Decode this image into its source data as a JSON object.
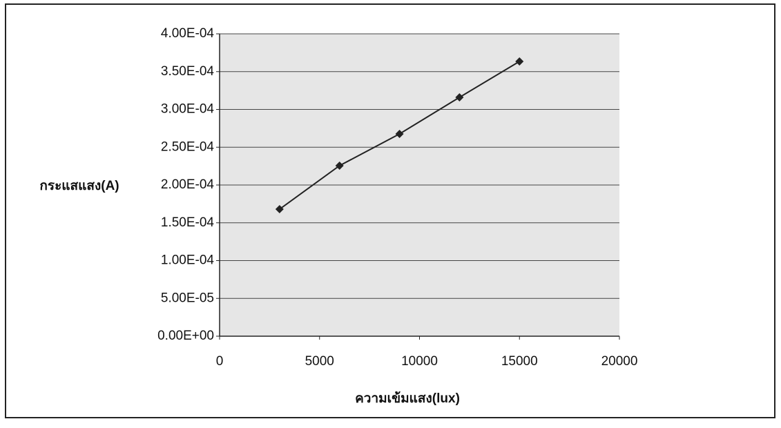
{
  "chart_data": {
    "type": "line",
    "x_label": "ความเข้มแสง(lux)",
    "y_label": "กระแสแสง(A)",
    "x": [
      3000,
      6000,
      9000,
      12000,
      15000
    ],
    "values": [
      0.000168,
      0.0002256,
      0.0002676,
      0.000316,
      0.0003635
    ],
    "color": "#222222",
    "xlim": [
      0,
      20000
    ],
    "xticks": [
      0,
      5000,
      10000,
      15000,
      20000
    ],
    "ylim": [
      0,
      0.0004
    ],
    "yticks": [
      {
        "value": 0,
        "label": "0.00E+00"
      },
      {
        "value": 5e-05,
        "label": "5.00E-05"
      },
      {
        "value": 0.0001,
        "label": "1.00E-04"
      },
      {
        "value": 0.00015,
        "label": "1.50E-04"
      },
      {
        "value": 0.0002,
        "label": "2.00E-04"
      },
      {
        "value": 0.00025,
        "label": "2.50E-04"
      },
      {
        "value": 0.0003,
        "label": "3.00E-04"
      },
      {
        "value": 0.00035,
        "label": "3.50E-04"
      },
      {
        "value": 0.0004,
        "label": "4.00E-04"
      }
    ],
    "grid": true
  }
}
